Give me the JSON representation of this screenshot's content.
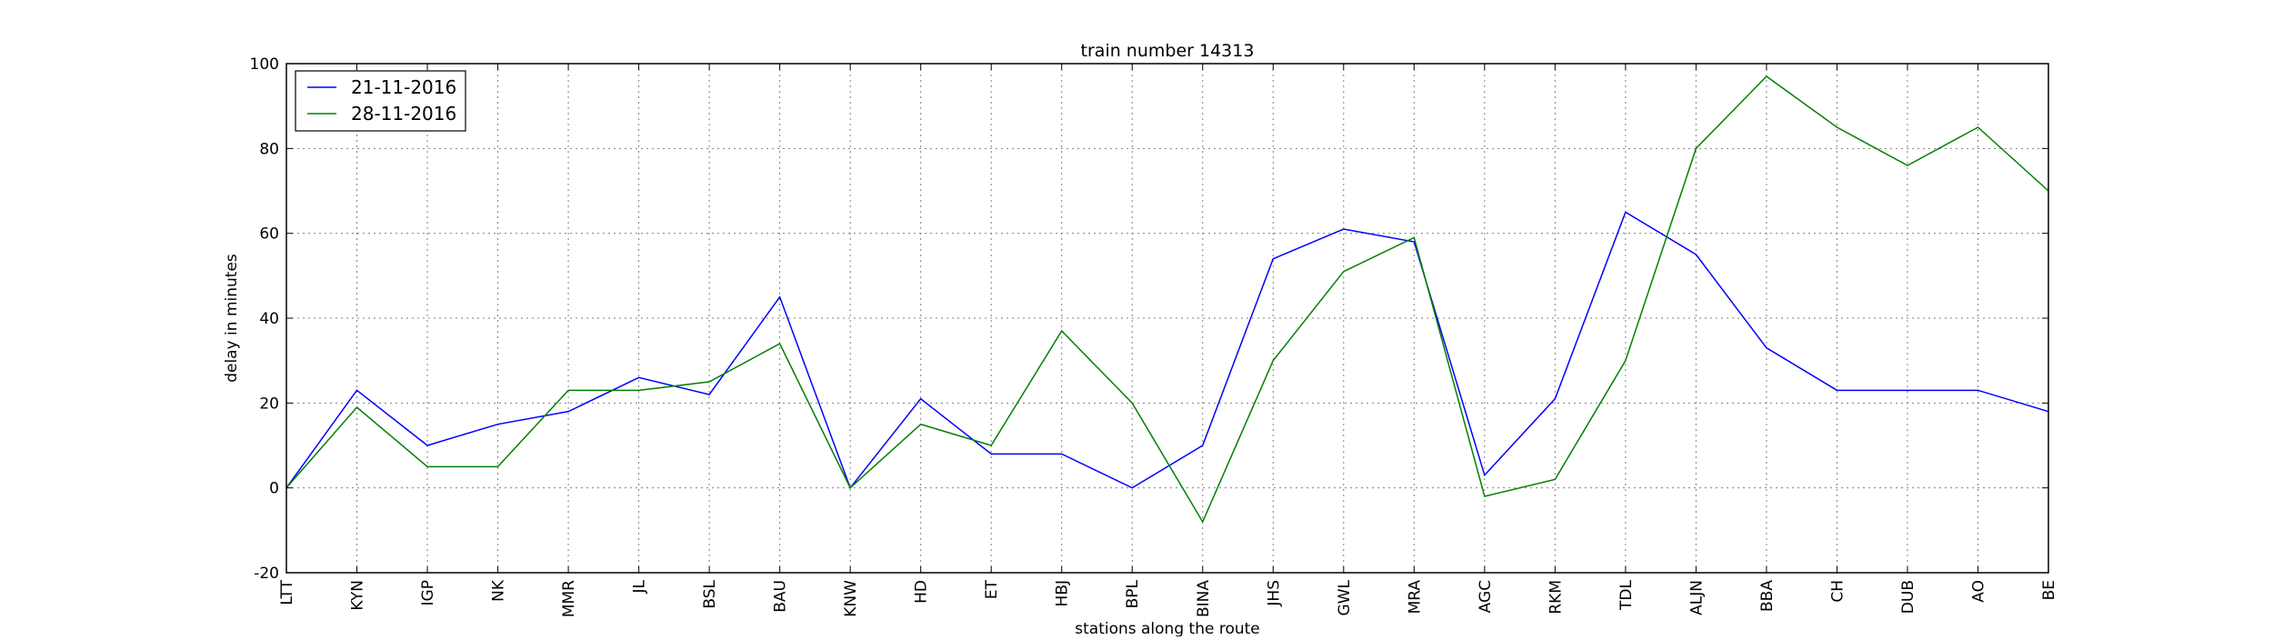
{
  "chart_data": {
    "type": "line",
    "title": "train number 14313",
    "xlabel": "stations along the route",
    "ylabel": "delay in minutes",
    "categories": [
      "LTT",
      "KYN",
      "IGP",
      "NK",
      "MMR",
      "JL",
      "BSL",
      "BAU",
      "KNW",
      "HD",
      "ET",
      "HBJ",
      "BPL",
      "BINA",
      "JHS",
      "GWL",
      "MRA",
      "AGC",
      "RKM",
      "TDL",
      "ALJN",
      "BBA",
      "CH",
      "DUB",
      "AO",
      "BE"
    ],
    "ylim": [
      -20,
      100
    ],
    "yticks": [
      -20,
      0,
      20,
      40,
      60,
      80,
      100
    ],
    "grid": true,
    "legend_position": "top-left",
    "series": [
      {
        "name": "21-11-2016",
        "color": "#0000ff",
        "values": [
          0,
          23,
          10,
          15,
          18,
          26,
          22,
          45,
          0,
          21,
          8,
          8,
          0,
          10,
          54,
          61,
          58,
          3,
          21,
          65,
          55,
          33,
          23,
          23,
          23,
          18
        ]
      },
      {
        "name": "28-11-2016",
        "color": "#008000",
        "values": [
          0,
          19,
          5,
          5,
          23,
          23,
          25,
          34,
          0,
          15,
          10,
          37,
          20,
          -8,
          30,
          51,
          59,
          -2,
          2,
          30,
          80,
          97,
          85,
          76,
          85,
          70
        ]
      }
    ]
  }
}
